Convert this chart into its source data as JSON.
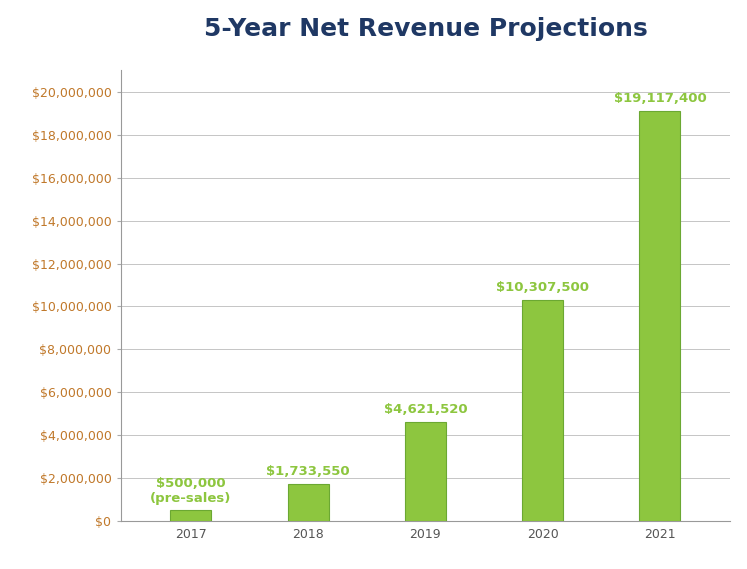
{
  "title": "5-Year Net Revenue Projections",
  "categories": [
    "2017",
    "2018",
    "2019",
    "2020",
    "2021"
  ],
  "values": [
    500000,
    1733550,
    4621520,
    10307500,
    19117400
  ],
  "bar_color": "#8DC63F",
  "bar_edge_color": "#6BA832",
  "bar_shadow_color": "#C8E6A0",
  "label_color": "#8DC63F",
  "title_color": "#1F3864",
  "ytick_color": "#C0782A",
  "xtick_color": "#555555",
  "background_color": "#FFFFFF",
  "ylim": [
    0,
    21000000
  ],
  "ytick_max": 20000000,
  "ytick_step": 2000000,
  "labels": [
    "$500,000\n(pre-sales)",
    "$1,733,550",
    "$4,621,520",
    "$10,307,500",
    "$19,117,400"
  ],
  "label_fontsize": 9.5,
  "title_fontsize": 18,
  "tick_fontsize": 9,
  "bar_width": 0.35,
  "figsize": [
    7.47,
    5.69
  ],
  "dpi": 100
}
